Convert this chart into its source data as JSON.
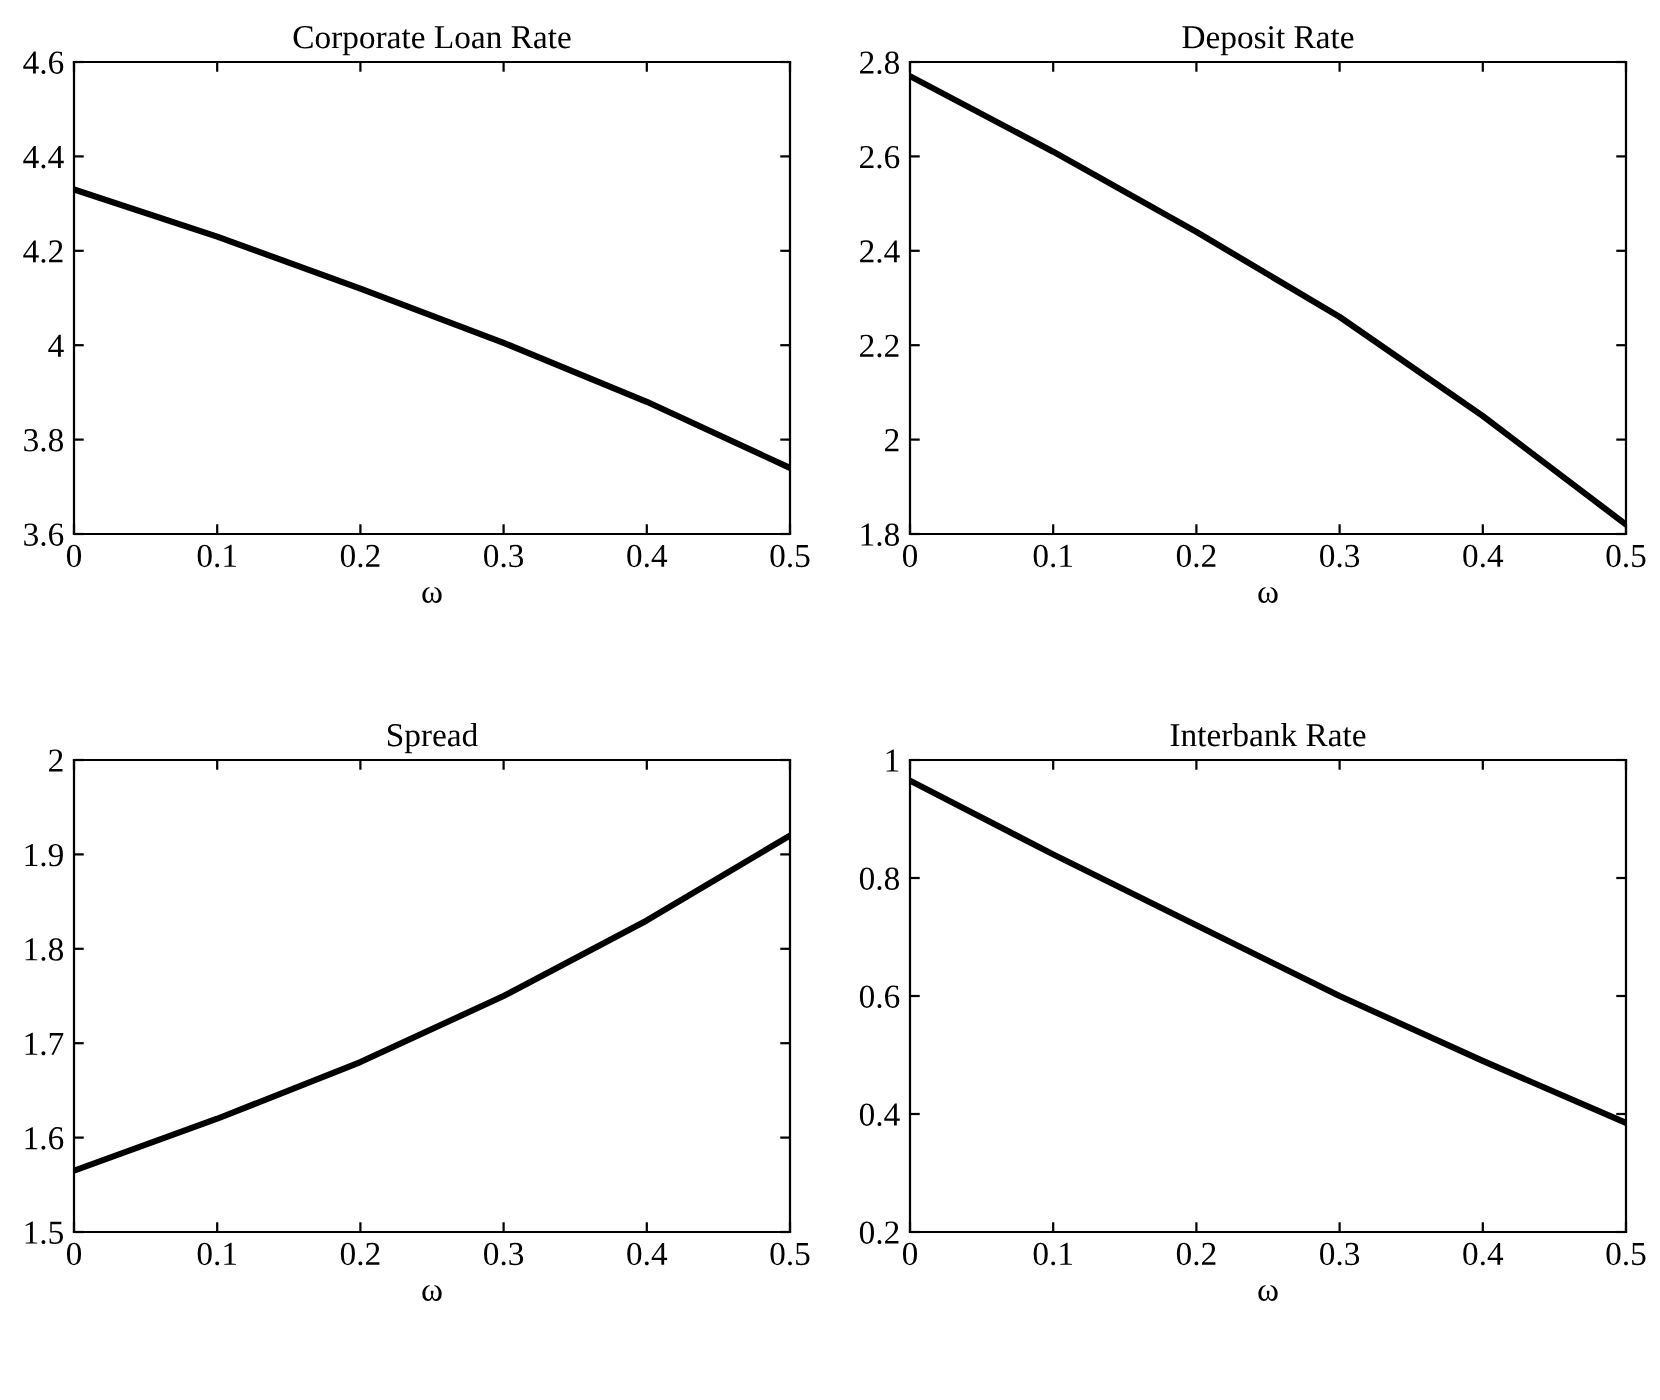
{
  "chart_data": [
    {
      "type": "line",
      "title": "Corporate Loan Rate",
      "xlabel": "ω",
      "x": [
        0,
        0.1,
        0.2,
        0.3,
        0.4,
        0.5
      ],
      "series": [
        {
          "color": "#000000",
          "values": [
            4.33,
            4.23,
            4.12,
            4.005,
            3.88,
            3.74
          ]
        }
      ],
      "xlim": [
        0,
        0.5
      ],
      "xticks": [
        0,
        0.1,
        0.2,
        0.3,
        0.4,
        0.5
      ],
      "ylim": [
        3.6,
        4.6
      ],
      "yticks": [
        3.6,
        3.8,
        4,
        4.2,
        4.4,
        4.6
      ]
    },
    {
      "type": "line",
      "title": "Deposit Rate",
      "xlabel": "ω",
      "x": [
        0,
        0.1,
        0.2,
        0.3,
        0.4,
        0.5
      ],
      "series": [
        {
          "color": "#000000",
          "values": [
            2.77,
            2.61,
            2.44,
            2.26,
            2.05,
            1.82
          ]
        }
      ],
      "xlim": [
        0,
        0.5
      ],
      "xticks": [
        0,
        0.1,
        0.2,
        0.3,
        0.4,
        0.5
      ],
      "ylim": [
        1.8,
        2.8
      ],
      "yticks": [
        1.8,
        2,
        2.2,
        2.4,
        2.6,
        2.8
      ]
    },
    {
      "type": "line",
      "title": "Spread",
      "xlabel": "ω",
      "x": [
        0,
        0.1,
        0.2,
        0.3,
        0.4,
        0.5
      ],
      "series": [
        {
          "color": "#000000",
          "values": [
            1.565,
            1.62,
            1.68,
            1.75,
            1.83,
            1.92
          ]
        }
      ],
      "xlim": [
        0,
        0.5
      ],
      "xticks": [
        0,
        0.1,
        0.2,
        0.3,
        0.4,
        0.5
      ],
      "ylim": [
        1.5,
        2
      ],
      "yticks": [
        1.5,
        1.6,
        1.7,
        1.8,
        1.9,
        2
      ]
    },
    {
      "type": "line",
      "title": "Interbank Rate",
      "xlabel": "ω",
      "x": [
        0,
        0.1,
        0.2,
        0.3,
        0.4,
        0.5
      ],
      "series": [
        {
          "color": "#000000",
          "values": [
            0.965,
            0.84,
            0.72,
            0.6,
            0.49,
            0.385
          ]
        }
      ],
      "xlim": [
        0,
        0.5
      ],
      "xticks": [
        0,
        0.1,
        0.2,
        0.3,
        0.4,
        0.5
      ],
      "ylim": [
        0.2,
        1
      ],
      "yticks": [
        0.2,
        0.4,
        0.6,
        0.8,
        1
      ]
    }
  ]
}
